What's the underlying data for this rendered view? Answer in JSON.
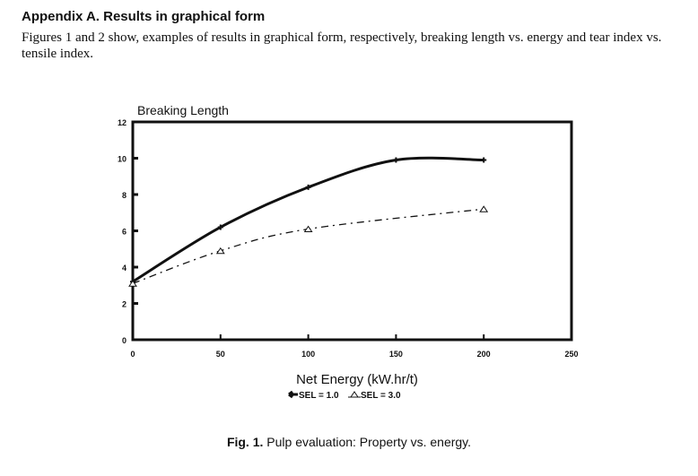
{
  "heading": "Appendix A. Results in graphical form",
  "paragraph": "Figures 1 and 2 show, examples of results in graphical form, respectively, breaking length vs. energy and tear index vs. tensile index.",
  "caption": {
    "label": "Fig. 1.",
    "text": " Pulp evaluation: Property vs. energy."
  },
  "chart_data": {
    "type": "line",
    "title": "Breaking Length",
    "xlabel": "Net Energy (kW.hr/t)",
    "ylabel": "Breaking Length",
    "xlim": [
      0,
      250
    ],
    "ylim": [
      0,
      12
    ],
    "xticks": [
      0,
      50,
      100,
      150,
      200,
      250
    ],
    "yticks": [
      0,
      2,
      4,
      6,
      8,
      10,
      12
    ],
    "grid": false,
    "legend_position": "bottom-center",
    "series": [
      {
        "name": "SEL = 1.0",
        "style": "solid",
        "x": [
          0,
          50,
          100,
          150,
          200
        ],
        "y": [
          3.2,
          6.2,
          8.4,
          9.9,
          9.9
        ]
      },
      {
        "name": "SEL = 3.0",
        "style": "dash-dot",
        "x": [
          0,
          50,
          100,
          200
        ],
        "y": [
          3.1,
          4.9,
          6.1,
          7.2
        ]
      }
    ]
  }
}
